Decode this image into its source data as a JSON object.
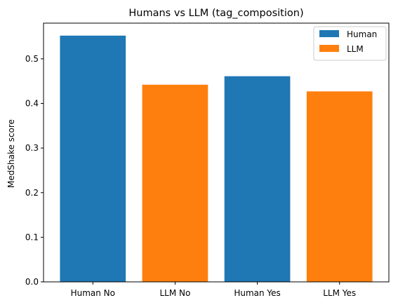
{
  "chart_data": {
    "type": "bar",
    "title": "Humans vs LLM (tag_composition)",
    "xlabel": "",
    "ylabel": "MedShake score",
    "categories": [
      "Human No",
      "LLM No",
      "Human Yes",
      "LLM Yes"
    ],
    "values": [
      0.552,
      0.442,
      0.461,
      0.427
    ],
    "bar_series": [
      "Human",
      "LLM",
      "Human",
      "LLM"
    ],
    "ylim": [
      0,
      0.58
    ],
    "yticks": [
      0.0,
      0.1,
      0.2,
      0.3,
      0.4,
      0.5
    ],
    "ytick_labels": [
      "0.0",
      "0.1",
      "0.2",
      "0.3",
      "0.4",
      "0.5"
    ],
    "grid": false,
    "legend": {
      "placement": "top-right",
      "entries": [
        {
          "name": "Human",
          "color": "#1f77b4"
        },
        {
          "name": "LLM",
          "color": "#ff7f0e"
        }
      ]
    }
  }
}
